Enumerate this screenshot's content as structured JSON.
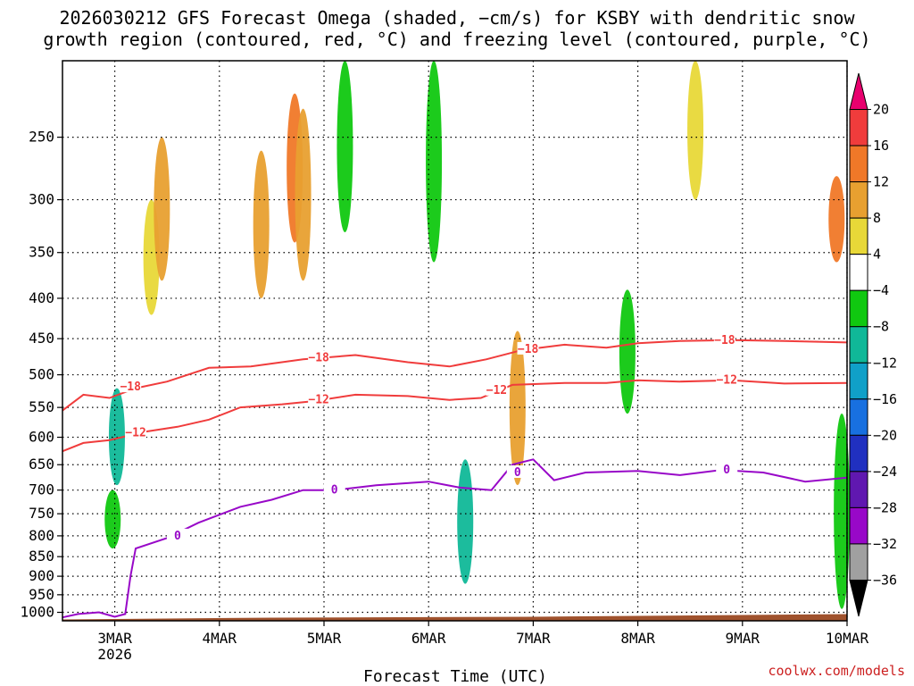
{
  "title_line1": "2026030212 GFS Forecast Omega (shaded, −cm/s) for KSBY with dendritic snow",
  "title_line2": "growth region (contoured, red, °C) and freezing level (contoured, purple, °C)",
  "xlabel": "Forecast Time (UTC)",
  "credit": "coolwx.com/models",
  "chart_data": {
    "type": "heatmap",
    "x_ticks": [
      {
        "day": 3,
        "label": "3MAR",
        "sublabel": "2026"
      },
      {
        "day": 4,
        "label": "4MAR"
      },
      {
        "day": 5,
        "label": "5MAR"
      },
      {
        "day": 6,
        "label": "6MAR"
      },
      {
        "day": 7,
        "label": "7MAR"
      },
      {
        "day": 8,
        "label": "8MAR"
      },
      {
        "day": 9,
        "label": "9MAR"
      },
      {
        "day": 10,
        "label": "10MAR"
      }
    ],
    "xlim": [
      2.5,
      10.0
    ],
    "y_ticks": [
      250,
      300,
      350,
      400,
      450,
      500,
      550,
      600,
      650,
      700,
      750,
      800,
      850,
      900,
      950,
      1000
    ],
    "ylim": [
      1025,
      200
    ],
    "grid": true,
    "colorbar": {
      "ticks": [
        "20",
        "16",
        "12",
        "8",
        "4",
        "−4",
        "−8",
        "−12",
        "−16",
        "−20",
        "−24",
        "−28",
        "−32",
        "−36"
      ],
      "colors": [
        "#e8006e",
        "#f03c3c",
        "#f07828",
        "#e8a030",
        "#e8d838",
        "#ffffff",
        "#10c810",
        "#10b898",
        "#10a0c8",
        "#1870e0",
        "#2030c0",
        "#6018b0",
        "#9808c8",
        "#a0a0a0",
        "#000000"
      ]
    },
    "shading": [
      {
        "day": 2.98,
        "p_top": 700,
        "p_bot": 830,
        "value": -8
      },
      {
        "day": 3.02,
        "p_top": 520,
        "p_bot": 690,
        "value": -12
      },
      {
        "day": 3.35,
        "p_top": 300,
        "p_bot": 420,
        "value": 8
      },
      {
        "day": 3.45,
        "p_top": 250,
        "p_bot": 380,
        "value": 12
      },
      {
        "day": 4.4,
        "p_top": 260,
        "p_bot": 400,
        "value": 12
      },
      {
        "day": 4.72,
        "p_top": 220,
        "p_bot": 340,
        "value": 16
      },
      {
        "day": 4.8,
        "p_top": 230,
        "p_bot": 380,
        "value": 12
      },
      {
        "day": 5.2,
        "p_top": 200,
        "p_bot": 330,
        "value": -8
      },
      {
        "day": 6.05,
        "p_top": 200,
        "p_bot": 360,
        "value": -8
      },
      {
        "day": 6.35,
        "p_top": 640,
        "p_bot": 920,
        "value": -12
      },
      {
        "day": 6.85,
        "p_top": 440,
        "p_bot": 690,
        "value": 12
      },
      {
        "day": 7.9,
        "p_top": 390,
        "p_bot": 560,
        "value": -8
      },
      {
        "day": 8.55,
        "p_top": 200,
        "p_bot": 300,
        "value": 8
      },
      {
        "day": 9.9,
        "p_top": 280,
        "p_bot": 360,
        "value": 16
      },
      {
        "day": 9.95,
        "p_top": 560,
        "p_bot": 990,
        "value": -8
      }
    ],
    "contours": [
      {
        "name": "dgz_-18",
        "color": "#f03c3c",
        "labels": [
          "−18",
          "−18",
          "−18",
          "−18"
        ],
        "points": [
          [
            2.5,
            555
          ],
          [
            2.7,
            530
          ],
          [
            2.95,
            535
          ],
          [
            3.2,
            520
          ],
          [
            3.5,
            510
          ],
          [
            3.9,
            490
          ],
          [
            4.3,
            488
          ],
          [
            4.8,
            478
          ],
          [
            5.3,
            472
          ],
          [
            5.8,
            482
          ],
          [
            6.2,
            488
          ],
          [
            6.55,
            478
          ],
          [
            6.9,
            465
          ],
          [
            7.3,
            458
          ],
          [
            7.7,
            462
          ],
          [
            8.0,
            456
          ],
          [
            8.4,
            453
          ],
          [
            8.9,
            452
          ],
          [
            9.4,
            453
          ],
          [
            10.0,
            455
          ]
        ]
      },
      {
        "name": "dgz_-12",
        "color": "#f03c3c",
        "labels": [
          "−12",
          "−12",
          "−12",
          "−12"
        ],
        "points": [
          [
            2.5,
            625
          ],
          [
            2.7,
            610
          ],
          [
            2.95,
            605
          ],
          [
            3.3,
            590
          ],
          [
            3.6,
            582
          ],
          [
            3.9,
            570
          ],
          [
            4.2,
            550
          ],
          [
            4.6,
            545
          ],
          [
            4.9,
            540
          ],
          [
            5.3,
            530
          ],
          [
            5.8,
            532
          ],
          [
            6.2,
            538
          ],
          [
            6.5,
            535
          ],
          [
            6.8,
            515
          ],
          [
            7.3,
            512
          ],
          [
            7.7,
            512
          ],
          [
            8.0,
            508
          ],
          [
            8.4,
            510
          ],
          [
            8.9,
            508
          ],
          [
            9.4,
            513
          ],
          [
            10.0,
            512
          ]
        ]
      },
      {
        "name": "freezing_0",
        "color": "#9808c8",
        "labels": [
          "0",
          "0",
          "0",
          "0"
        ],
        "points": [
          [
            2.5,
            1015
          ],
          [
            2.65,
            1005
          ],
          [
            2.85,
            1000
          ],
          [
            3.0,
            1013
          ],
          [
            3.1,
            1005
          ],
          [
            3.15,
            900
          ],
          [
            3.2,
            830
          ],
          [
            3.5,
            805
          ],
          [
            3.8,
            770
          ],
          [
            4.2,
            735
          ],
          [
            4.5,
            720
          ],
          [
            4.8,
            700
          ],
          [
            5.1,
            700
          ],
          [
            5.5,
            690
          ],
          [
            6.0,
            683
          ],
          [
            6.3,
            695
          ],
          [
            6.6,
            700
          ],
          [
            6.8,
            650
          ],
          [
            7.0,
            640
          ],
          [
            7.2,
            680
          ],
          [
            7.5,
            665
          ],
          [
            8.0,
            662
          ],
          [
            8.4,
            670
          ],
          [
            8.8,
            660
          ],
          [
            9.2,
            665
          ],
          [
            9.6,
            683
          ],
          [
            10.0,
            675
          ]
        ]
      }
    ],
    "contour_label_pos": [
      {
        "contour": "dgz_-18",
        "day": 3.15,
        "p": 518
      },
      {
        "contour": "dgz_-18",
        "day": 4.95,
        "p": 476
      },
      {
        "contour": "dgz_-18",
        "day": 6.95,
        "p": 464
      },
      {
        "contour": "dgz_-18",
        "day": 8.83,
        "p": 452
      },
      {
        "contour": "dgz_-12",
        "day": 3.2,
        "p": 592
      },
      {
        "contour": "dgz_-12",
        "day": 4.95,
        "p": 538
      },
      {
        "contour": "dgz_-12",
        "day": 6.65,
        "p": 523
      },
      {
        "contour": "dgz_-12",
        "day": 8.85,
        "p": 508
      },
      {
        "contour": "freezing_0",
        "day": 3.6,
        "p": 800
      },
      {
        "contour": "freezing_0",
        "day": 5.1,
        "p": 700
      },
      {
        "contour": "freezing_0",
        "day": 6.85,
        "p": 665
      },
      {
        "contour": "freezing_0",
        "day": 8.85,
        "p": 660
      }
    ],
    "terrain": {
      "color": "#a0522d",
      "p_top": 1013
    }
  }
}
